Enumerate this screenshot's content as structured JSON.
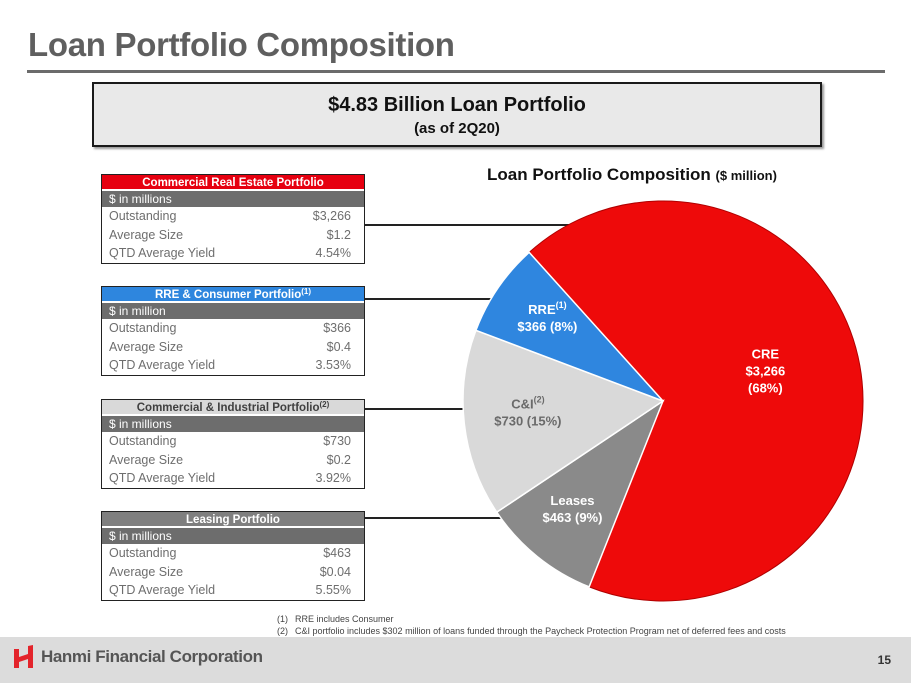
{
  "page": {
    "title": "Loan Portfolio Composition",
    "summary_main": "$4.83 Billion Loan Portfolio",
    "summary_sub": "(as of 2Q20)",
    "page_number": "15",
    "company": "Hanmi Financial Corporation"
  },
  "tables": [
    {
      "title": "Commercial Real Estate Portfolio",
      "footnote_ref": "",
      "units": "$ in millions",
      "header_color": "#e60010",
      "rows": [
        {
          "label": "Outstanding",
          "value": "$3,266"
        },
        {
          "label": "Average Size",
          "value": "$1.2"
        },
        {
          "label": "QTD Average Yield",
          "value": "4.54%"
        }
      ]
    },
    {
      "title": "RRE & Consumer Portfolio",
      "footnote_ref": "(1)",
      "units": "$ in million",
      "header_color": "#2e86de",
      "rows": [
        {
          "label": "Outstanding",
          "value": "$366"
        },
        {
          "label": "Average Size",
          "value": "$0.4"
        },
        {
          "label": "QTD Average Yield",
          "value": "3.53%"
        }
      ]
    },
    {
      "title": "Commercial & Industrial Portfolio",
      "footnote_ref": "(2)",
      "units": "$ in millions",
      "header_color": "#d9d9d9",
      "rows": [
        {
          "label": "Outstanding",
          "value": "$730"
        },
        {
          "label": "Average Size",
          "value": "$0.2"
        },
        {
          "label": "QTD Average Yield",
          "value": "3.92%"
        }
      ]
    },
    {
      "title": "Leasing Portfolio",
      "footnote_ref": "",
      "units": "$ in millions",
      "header_color": "#7f7f7f",
      "rows": [
        {
          "label": "Outstanding",
          "value": "$463"
        },
        {
          "label": "Average Size",
          "value": "$0.04"
        },
        {
          "label": "QTD Average Yield",
          "value": "5.55%"
        }
      ]
    }
  ],
  "chart_data": {
    "type": "pie",
    "title": "Loan Portfolio Composition",
    "subtitle": "($ million)",
    "start_angle_deg": -42,
    "direction": "clockwise",
    "slices": [
      {
        "name": "CRE",
        "sup": "",
        "value": 3266,
        "percent": 68,
        "value_label": "$3,266",
        "pct_label": "(68%)",
        "color": "#ee0a0a",
        "label_color": "#ffffff"
      },
      {
        "name": "Leases",
        "sup": "",
        "value": 463,
        "percent": 9,
        "value_label": "$463",
        "pct_label": "(9%)",
        "color": "#8a8a8a",
        "label_color": "#ffffff"
      },
      {
        "name": "C&I",
        "sup": "(2)",
        "value": 730,
        "percent": 15,
        "value_label": "$730",
        "pct_label": "(15%)",
        "color": "#d9d9d9",
        "label_color": "#6a6a6a"
      },
      {
        "name": "RRE",
        "sup": "(1)",
        "value": 366,
        "percent": 8,
        "value_label": "$366",
        "pct_label": "(8%)",
        "color": "#2f86df",
        "label_color": "#ffffff"
      }
    ]
  },
  "footnotes": [
    {
      "num": "(1)",
      "text": "RRE includes Consumer"
    },
    {
      "num": "(2)",
      "text": "C&I portfolio includes $302 million of loans funded through the Paycheck Protection Program net of deferred fees and costs"
    }
  ]
}
